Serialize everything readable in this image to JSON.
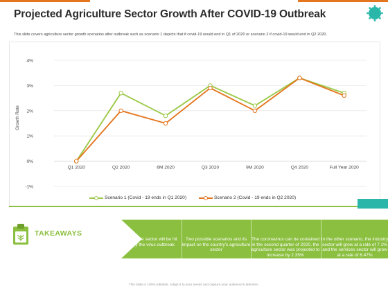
{
  "header": {
    "title": "Projected Agriculture Sector Growth After COVID-19 Outbreak",
    "subtitle": "This slide covers agriculture sector growth scenarios after outbreak such as scenario 1 depicts that if covid-19 would end in Q1 of 2020 or scenario 2 if covid-19 would end in Q2 2020."
  },
  "colors": {
    "scenario1": "#9dc94a",
    "scenario2": "#e4761f",
    "accent_green": "#8bbf3f",
    "teal": "#2ab7a9"
  },
  "chart_data": {
    "type": "line",
    "categories": [
      "Q1 2020",
      "Q2 2020",
      "6M 2020",
      "Q3 2020",
      "9M 2020",
      "Q4 2020",
      "Full Year 2020"
    ],
    "series": [
      {
        "name": "Scenario 1 (Covid - 19 ends in Q1 2020)",
        "values": [
          0.0,
          2.7,
          1.8,
          3.0,
          2.2,
          3.3,
          2.7
        ]
      },
      {
        "name": "Scenario 2 (Covid - 19 ends in Q2 2020)",
        "values": [
          0.0,
          2.0,
          1.5,
          2.9,
          2.0,
          3.3,
          2.6
        ]
      }
    ],
    "yticks": [
      "4%",
      "3%",
      "2%",
      "1%",
      "0%",
      "-1%"
    ],
    "ylabel": "Growth Rate",
    "ylim": [
      -1,
      4
    ],
    "legend_position": "bottom"
  },
  "takeaways": {
    "label": "TAKEAWAYS",
    "items": [
      "The agriculture sector will be hit hardest by the virus outbreak",
      "Two possible scenarios and its impact on the country's agriculture sector",
      "The coronavirus can be contained in the second quarter of 2020, the agriculture sector was projected to increase by 2.35%",
      "In the other scenario, the industry sector will grow at a rate of 7.1% and the services sector will grow at a rate of 6.47%"
    ]
  },
  "footer": {
    "text": "This slide is 100% editable. Adapt it to your needs and capture your audience's attention."
  }
}
